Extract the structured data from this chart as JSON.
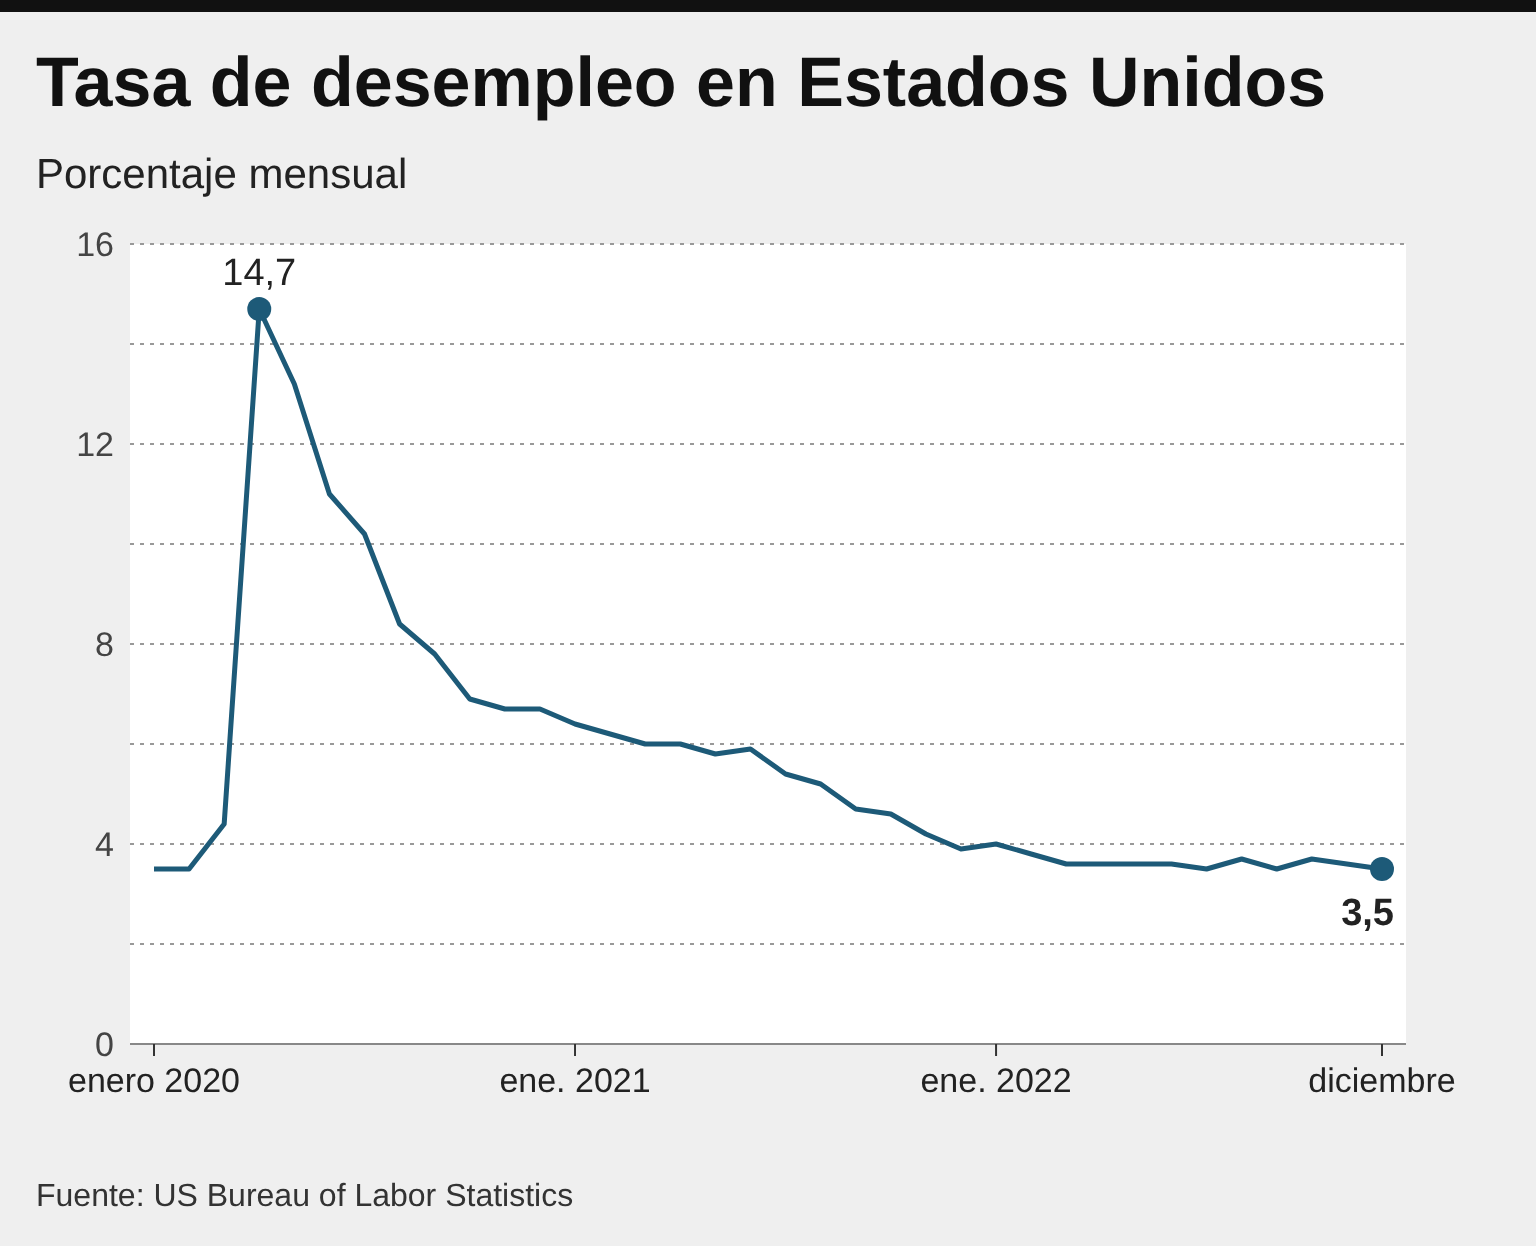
{
  "chart_data": {
    "type": "line",
    "title": "Tasa de desempleo en Estados Unidos",
    "subtitle": "Porcentaje mensual",
    "categories": [
      "enero 2020",
      null,
      null,
      null,
      null,
      null,
      null,
      null,
      null,
      null,
      null,
      null,
      "ene. 2021",
      null,
      null,
      null,
      null,
      null,
      null,
      null,
      null,
      null,
      null,
      null,
      "ene. 2022",
      null,
      null,
      null,
      null,
      null,
      null,
      null,
      null,
      null,
      null,
      "diciembre"
    ],
    "series": [
      {
        "color": "#1d5a78",
        "values": [
          3.5,
          3.5,
          4.4,
          14.7,
          13.2,
          11.0,
          10.2,
          8.4,
          7.8,
          6.9,
          6.7,
          6.7,
          6.4,
          6.2,
          6.0,
          6.0,
          5.8,
          5.9,
          5.4,
          5.2,
          4.7,
          4.6,
          4.2,
          3.9,
          4.0,
          3.8,
          3.6,
          3.6,
          3.6,
          3.6,
          3.5,
          3.7,
          3.5,
          3.7,
          3.6,
          3.5
        ],
        "value_labels": [
          null,
          null,
          null,
          "14,7",
          null,
          null,
          null,
          null,
          null,
          null,
          null,
          null,
          null,
          null,
          null,
          null,
          null,
          null,
          null,
          null,
          null,
          null,
          null,
          null,
          null,
          null,
          null,
          null,
          null,
          null,
          null,
          null,
          null,
          null,
          null,
          "3,5"
        ]
      }
    ],
    "ylim": [
      0,
      16
    ],
    "yticks": [
      0,
      {
        "value": 2,
        "label": null
      },
      4,
      {
        "value": 6,
        "label": null
      },
      8,
      {
        "value": 10,
        "label": null
      },
      12,
      {
        "value": 14,
        "label": null
      },
      16
    ],
    "grid": "y",
    "annotations": [
      "Fuente: US Bureau of Labor Statistics"
    ]
  }
}
